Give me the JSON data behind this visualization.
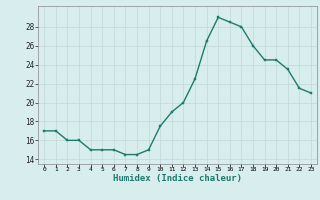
{
  "x": [
    0,
    1,
    2,
    3,
    4,
    5,
    6,
    7,
    8,
    9,
    10,
    11,
    12,
    13,
    14,
    15,
    16,
    17,
    18,
    19,
    20,
    21,
    22,
    23
  ],
  "y": [
    17,
    17,
    16,
    16,
    15,
    15,
    15,
    14.5,
    14.5,
    15,
    17.5,
    19,
    20,
    22.5,
    26.5,
    29,
    28.5,
    28,
    26,
    24.5,
    24.5,
    23.5,
    21.5,
    21
  ],
  "xlabel": "Humidex (Indice chaleur)",
  "ylim": [
    13.5,
    30.2
  ],
  "xlim": [
    -0.5,
    23.5
  ],
  "yticks": [
    14,
    16,
    18,
    20,
    22,
    24,
    26,
    28
  ],
  "xtick_labels": [
    "0",
    "1",
    "2",
    "3",
    "4",
    "5",
    "6",
    "7",
    "8",
    "9",
    "10",
    "11",
    "12",
    "13",
    "14",
    "15",
    "16",
    "17",
    "18",
    "19",
    "20",
    "21",
    "22",
    "23"
  ],
  "line_color": "#1e7a6e",
  "marker_color": "#1e7a6e",
  "bg_color": "#d8eeee",
  "grid_color": "#c2d8d8",
  "xlabel_color": "#1e7a6e"
}
